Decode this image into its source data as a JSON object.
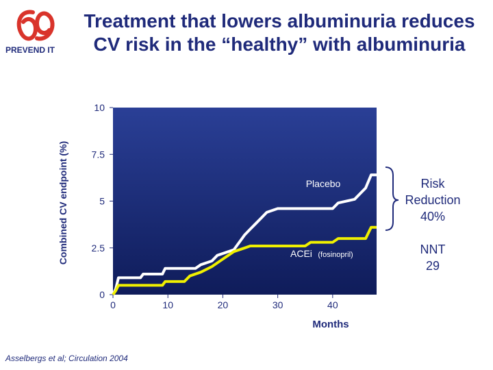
{
  "header": {
    "logo_text": "PREVEND IT",
    "title_line1": "Treatment that lowers albuminuria reduces",
    "title_line2": "CV risk in the “healthy” with albuminuria"
  },
  "annotations": {
    "risk_reduction": [
      "Risk",
      "Reduction",
      "40%"
    ],
    "nnt": [
      "NNT",
      "29"
    ]
  },
  "citation": "Asselbergs et al; Circulation 2004",
  "colors": {
    "brand": "#1f2a7a",
    "plot_bg": "#1c2e7a",
    "placebo": "#ffffff",
    "acei": "#f0f000",
    "logo": "#d9342b"
  },
  "chart_data": {
    "type": "line",
    "ylabel": "Combined CV endpoint (%)",
    "xlabel": "Months",
    "xlim": [
      0,
      48
    ],
    "ylim": [
      0,
      10
    ],
    "yticks": [
      "0",
      "2.5",
      "5",
      "7.5",
      "10"
    ],
    "xticks": [
      "0",
      "10",
      "20",
      "30",
      "40"
    ],
    "series": [
      {
        "name": "Placebo",
        "color": "#ffffff",
        "points": [
          [
            0,
            0
          ],
          [
            0.5,
            0.3
          ],
          [
            1,
            0.9
          ],
          [
            5,
            0.9
          ],
          [
            5.5,
            1.1
          ],
          [
            9,
            1.1
          ],
          [
            9.5,
            1.4
          ],
          [
            15,
            1.4
          ],
          [
            16,
            1.6
          ],
          [
            18,
            1.8
          ],
          [
            19,
            2.1
          ],
          [
            22,
            2.4
          ],
          [
            23,
            2.8
          ],
          [
            24,
            3.2
          ],
          [
            25,
            3.5
          ],
          [
            26,
            3.8
          ],
          [
            27,
            4.1
          ],
          [
            28,
            4.4
          ],
          [
            30,
            4.6
          ],
          [
            31,
            4.6
          ],
          [
            32,
            4.6
          ],
          [
            40,
            4.6
          ],
          [
            41,
            4.9
          ],
          [
            44,
            5.1
          ],
          [
            45,
            5.4
          ],
          [
            46,
            5.7
          ],
          [
            47,
            6.4
          ],
          [
            48,
            6.4
          ]
        ]
      },
      {
        "name": "ACEi",
        "note": "(fosinopril)",
        "color": "#f0f000",
        "points": [
          [
            0,
            0
          ],
          [
            0.5,
            0.2
          ],
          [
            1,
            0.5
          ],
          [
            9,
            0.5
          ],
          [
            9.5,
            0.7
          ],
          [
            13,
            0.7
          ],
          [
            14,
            1.0
          ],
          [
            16,
            1.2
          ],
          [
            18,
            1.5
          ],
          [
            19,
            1.7
          ],
          [
            20,
            1.9
          ],
          [
            21,
            2.1
          ],
          [
            22,
            2.3
          ],
          [
            24,
            2.5
          ],
          [
            25,
            2.6
          ],
          [
            35,
            2.6
          ],
          [
            36,
            2.8
          ],
          [
            40,
            2.8
          ],
          [
            41,
            3.0
          ],
          [
            46,
            3.0
          ],
          [
            47,
            3.6
          ],
          [
            48,
            3.6
          ]
        ]
      }
    ]
  }
}
